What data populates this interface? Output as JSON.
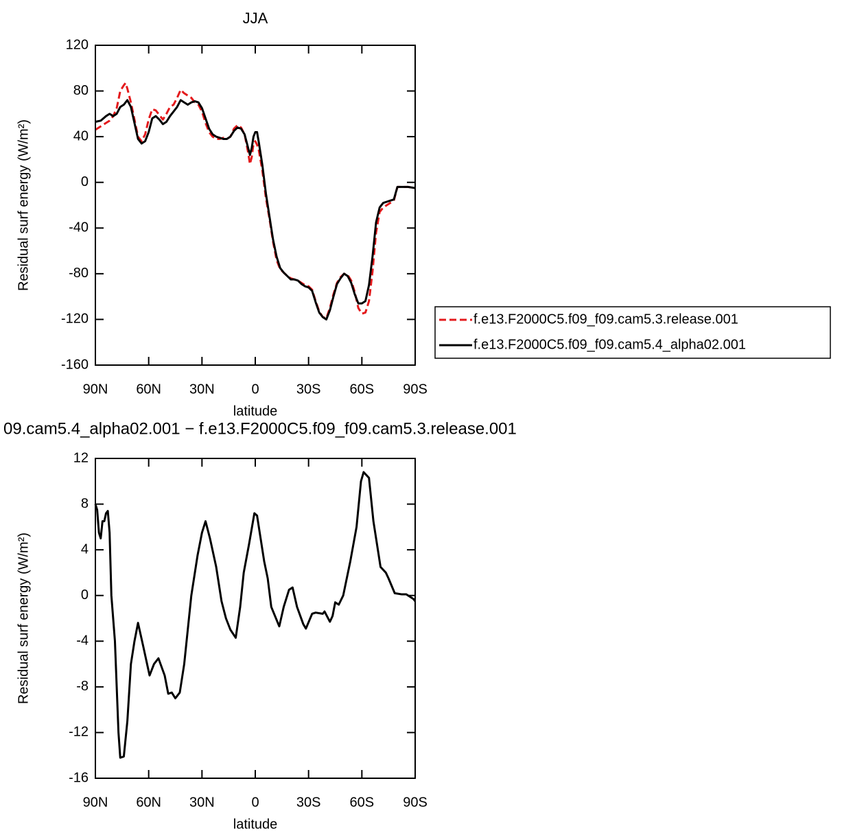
{
  "chart_data": [
    {
      "type": "line",
      "title": "JJA",
      "xlabel": "latitude",
      "ylabel": "Residual surf energy (W/m²)",
      "xlim": [
        90,
        -90
      ],
      "ylim": [
        -160,
        120
      ],
      "xticks": [
        {
          "value": 90,
          "label": "90N"
        },
        {
          "value": 60,
          "label": "60N"
        },
        {
          "value": 30,
          "label": "30N"
        },
        0,
        {
          "value": -30,
          "label": "30S"
        },
        {
          "value": -60,
          "label": "60S"
        },
        {
          "value": -90,
          "label": "90S"
        }
      ],
      "yticks": [
        -160,
        -120,
        -80,
        -40,
        0,
        40,
        80,
        120
      ],
      "legend": "right",
      "series": [
        {
          "name": "f.e13.F2000C5.f09_f09.cam5.3.release.001",
          "color": "#e41a1c",
          "linestyle": "dashed",
          "x": [
            90,
            87,
            84,
            82,
            80,
            78,
            76,
            74,
            73,
            72,
            70,
            68,
            66,
            64,
            62,
            60,
            58,
            56,
            54,
            52,
            50,
            48,
            46,
            44,
            42,
            40,
            38,
            36,
            34,
            32,
            30,
            28,
            26,
            24,
            22,
            20,
            18,
            16,
            14,
            12,
            10,
            8,
            6,
            4,
            3,
            2,
            1,
            0,
            -1,
            -2,
            -4,
            -6,
            -8,
            -10,
            -12,
            -14,
            -16,
            -18,
            -20,
            -22,
            -24,
            -26,
            -28,
            -30,
            -32,
            -34,
            -36,
            -38,
            -40,
            -42,
            -44,
            -46,
            -48,
            -50,
            -52,
            -54,
            -56,
            -58,
            -60,
            -62,
            -64,
            -66,
            -68,
            -70,
            -72,
            -74,
            -76,
            -78,
            -80,
            -82,
            -86,
            -90
          ],
          "values": [
            46,
            49,
            52,
            54,
            58,
            65,
            80,
            85,
            87,
            82,
            70,
            55,
            40,
            36,
            42,
            55,
            64,
            63,
            59,
            55,
            60,
            66,
            68,
            74,
            81,
            78,
            76,
            74,
            70,
            68,
            62,
            52,
            44,
            40,
            38,
            38,
            39,
            38,
            40,
            47,
            50,
            48,
            42,
            26,
            16,
            22,
            34,
            36,
            33,
            28,
            10,
            -14,
            -32,
            -52,
            -68,
            -76,
            -79,
            -82,
            -84,
            -85,
            -86,
            -88,
            -90,
            -91,
            -94,
            -104,
            -113,
            -118,
            -119,
            -110,
            -98,
            -88,
            -83,
            -80,
            -81,
            -86,
            -96,
            -110,
            -115,
            -114,
            -104,
            -78,
            -44,
            -26,
            -22,
            -20,
            -18,
            -16,
            -4,
            -4,
            -4,
            -5
          ]
        },
        {
          "name": "f.e13.F2000C5.f09_f09.cam5.4_alpha02.001",
          "color": "#000000",
          "linestyle": "solid",
          "x": [
            90,
            87,
            84,
            82,
            80,
            78,
            76,
            74,
            73,
            72,
            70,
            68,
            66,
            64,
            62,
            60,
            58,
            56,
            54,
            52,
            50,
            48,
            46,
            44,
            42,
            40,
            38,
            36,
            34,
            32,
            30,
            28,
            26,
            24,
            22,
            20,
            18,
            16,
            14,
            12,
            10,
            8,
            6,
            4,
            3,
            2,
            1,
            0,
            -1,
            -2,
            -4,
            -6,
            -8,
            -10,
            -12,
            -14,
            -16,
            -18,
            -20,
            -22,
            -24,
            -26,
            -28,
            -30,
            -32,
            -34,
            -36,
            -38,
            -40,
            -42,
            -44,
            -46,
            -48,
            -50,
            -52,
            -54,
            -56,
            -58,
            -60,
            -62,
            -64,
            -66,
            -68,
            -70,
            -72,
            -74,
            -76,
            -78,
            -80,
            -82,
            -86,
            -90
          ],
          "values": [
            53,
            54,
            58,
            60,
            58,
            60,
            66,
            68,
            70,
            72,
            66,
            52,
            38,
            34,
            36,
            44,
            56,
            58,
            55,
            51,
            53,
            58,
            62,
            66,
            72,
            70,
            68,
            70,
            71,
            70,
            65,
            56,
            47,
            42,
            40,
            39,
            38,
            38,
            40,
            45,
            48,
            47,
            42,
            30,
            24,
            30,
            40,
            44,
            44,
            35,
            15,
            -10,
            -30,
            -50,
            -65,
            -75,
            -79,
            -82,
            -85,
            -85,
            -86,
            -89,
            -91,
            -92,
            -95,
            -105,
            -114,
            -118,
            -120,
            -112,
            -100,
            -89,
            -84,
            -80,
            -82,
            -88,
            -98,
            -106,
            -106,
            -104,
            -90,
            -65,
            -35,
            -22,
            -18,
            -17,
            -16,
            -15,
            -4,
            -4,
            -4,
            -5
          ]
        }
      ]
    },
    {
      "type": "line",
      "title": "09.cam5.4_alpha02.001 − f.e13.F2000C5.f09_f09.cam5.3.release.001",
      "xlabel": "latitude",
      "ylabel": "Residual surf energy (W/m²)",
      "xlim": [
        90,
        -90
      ],
      "ylim": [
        -16,
        12
      ],
      "xticks": [
        {
          "value": 90,
          "label": "90N"
        },
        {
          "value": 60,
          "label": "60N"
        },
        {
          "value": 30,
          "label": "30N"
        },
        0,
        {
          "value": -30,
          "label": "30S"
        },
        {
          "value": -60,
          "label": "60S"
        },
        {
          "value": -90,
          "label": "90S"
        }
      ],
      "yticks": [
        -16,
        -12,
        -8,
        -4,
        0,
        4,
        8,
        12
      ],
      "series": [
        {
          "color": "#000000",
          "linestyle": "solid",
          "x": [
            90,
            89,
            88,
            87,
            86,
            85,
            84,
            83,
            82,
            81,
            79,
            78,
            77,
            76,
            74,
            72,
            70,
            68,
            66,
            63,
            59.5,
            57,
            54.5,
            51,
            49,
            47,
            45,
            42.5,
            40,
            38,
            36,
            32.5,
            30,
            28,
            25.5,
            22,
            19,
            16.5,
            14,
            11,
            8.5,
            6.5,
            3.5,
            0.5,
            -1,
            -5,
            -7,
            -9,
            -13.5,
            -16,
            -19,
            -21,
            -23.5,
            -27,
            -28.5,
            -32,
            -34,
            -38,
            -39,
            -42,
            -43.5,
            -45,
            -47,
            -49.5,
            -53.5,
            -57,
            -59.5,
            -61,
            -64,
            -66.5,
            -69,
            -70.5,
            -73.5,
            -75,
            -78.5,
            -82.5,
            -85,
            -89,
            -90
          ],
          "values": [
            8,
            7.5,
            5.5,
            5,
            6.5,
            6.5,
            7.2,
            7.4,
            5.5,
            0,
            -4,
            -8,
            -12,
            -14.2,
            -14.1,
            -11,
            -6,
            -4,
            -2.4,
            -4.5,
            -7,
            -6,
            -5.5,
            -7,
            -8.6,
            -8.5,
            -9,
            -8.5,
            -6,
            -3,
            0,
            3.5,
            5.5,
            6.5,
            5,
            2.5,
            -0.5,
            -2,
            -3,
            -3.7,
            -1,
            2,
            4.5,
            7.2,
            7,
            3,
            1.5,
            -1,
            -2.7,
            -1,
            0.5,
            0.7,
            -1,
            -2.5,
            -2.9,
            -1.6,
            -1.5,
            -1.6,
            -1.4,
            -2.3,
            -1.8,
            -0.6,
            -0.8,
            0,
            3,
            6,
            10,
            10.8,
            10.3,
            6.5,
            4,
            2.5,
            2,
            1.5,
            0.2,
            0.1,
            0.1,
            -0.3,
            -0.5
          ]
        }
      ]
    }
  ]
}
